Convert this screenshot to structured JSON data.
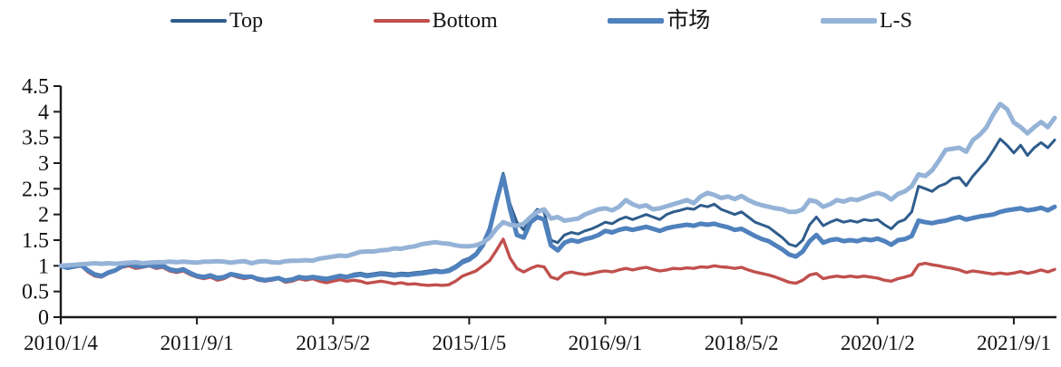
{
  "legend": {
    "items": [
      {
        "label": "Top"
      },
      {
        "label": "Bottom"
      },
      {
        "label": "市场"
      },
      {
        "label": "L-S"
      }
    ]
  },
  "chart_data": {
    "type": "line",
    "title": "",
    "xlabel": "",
    "ylabel": "",
    "grid": false,
    "legend_position": "top",
    "ylim": [
      0,
      4.5
    ],
    "y_ticks": [
      {
        "value": 0,
        "label": "0"
      },
      {
        "value": 0.5,
        "label": "0.5"
      },
      {
        "value": 1,
        "label": "1"
      },
      {
        "value": 1.5,
        "label": "1.5"
      },
      {
        "value": 2,
        "label": "2"
      },
      {
        "value": 2.5,
        "label": "2.5"
      },
      {
        "value": 3,
        "label": "3"
      },
      {
        "value": 3.5,
        "label": "3.5"
      },
      {
        "value": 4,
        "label": "4"
      },
      {
        "value": 4.5,
        "label": "4.5"
      }
    ],
    "x_month_count": 147,
    "x_start_label": "2010/1/4",
    "x_ticks": [
      {
        "month": 0,
        "label": "2010/1/4"
      },
      {
        "month": 20,
        "label": "2011/9/1"
      },
      {
        "month": 40,
        "label": "2013/5/2"
      },
      {
        "month": 60,
        "label": "2015/1/5"
      },
      {
        "month": 80,
        "label": "2016/9/1"
      },
      {
        "month": 100,
        "label": "2018/5/2"
      },
      {
        "month": 120,
        "label": "2020/1/2"
      },
      {
        "month": 140,
        "label": "2021/9/1"
      }
    ],
    "axis_color": "#1a1a1a",
    "series": [
      {
        "name": "Top",
        "color": "#2F5D8C",
        "stroke_width": 3,
        "values": [
          1.0,
          0.97,
          1.0,
          1.02,
          0.92,
          0.85,
          0.82,
          0.88,
          0.92,
          1.0,
          1.05,
          1.0,
          1.0,
          1.03,
          1.0,
          1.02,
          0.95,
          0.92,
          0.95,
          0.88,
          0.82,
          0.8,
          0.83,
          0.78,
          0.8,
          0.85,
          0.83,
          0.8,
          0.8,
          0.76,
          0.74,
          0.75,
          0.77,
          0.73,
          0.75,
          0.8,
          0.78,
          0.8,
          0.78,
          0.76,
          0.79,
          0.82,
          0.8,
          0.84,
          0.86,
          0.83,
          0.85,
          0.87,
          0.86,
          0.84,
          0.86,
          0.85,
          0.87,
          0.88,
          0.9,
          0.92,
          0.9,
          0.93,
          1.0,
          1.1,
          1.15,
          1.25,
          1.45,
          1.75,
          2.3,
          2.8,
          2.2,
          1.85,
          1.7,
          1.95,
          2.1,
          2.05,
          1.5,
          1.45,
          1.6,
          1.65,
          1.62,
          1.68,
          1.72,
          1.78,
          1.85,
          1.82,
          1.9,
          1.95,
          1.9,
          1.95,
          2.0,
          1.95,
          1.9,
          2.0,
          2.05,
          2.08,
          2.12,
          2.1,
          2.18,
          2.15,
          2.2,
          2.1,
          2.05,
          2.0,
          2.05,
          1.95,
          1.85,
          1.8,
          1.75,
          1.65,
          1.55,
          1.42,
          1.38,
          1.5,
          1.8,
          1.95,
          1.78,
          1.85,
          1.9,
          1.85,
          1.88,
          1.85,
          1.9,
          1.88,
          1.9,
          1.8,
          1.72,
          1.85,
          1.9,
          2.05,
          2.55,
          2.5,
          2.45,
          2.55,
          2.6,
          2.7,
          2.72,
          2.56,
          2.75,
          2.9,
          3.05,
          3.25,
          3.47,
          3.35,
          3.2,
          3.35,
          3.15,
          3.3,
          3.4,
          3.3,
          3.45
        ]
      },
      {
        "name": "Bottom",
        "color": "#C0504D",
        "stroke_width": 3.4,
        "values": [
          1.0,
          0.95,
          0.97,
          1.0,
          0.88,
          0.8,
          0.78,
          0.85,
          0.9,
          0.97,
          1.0,
          0.95,
          0.97,
          1.0,
          0.95,
          0.97,
          0.9,
          0.87,
          0.9,
          0.83,
          0.78,
          0.75,
          0.78,
          0.72,
          0.75,
          0.82,
          0.78,
          0.75,
          0.78,
          0.72,
          0.7,
          0.72,
          0.75,
          0.68,
          0.7,
          0.75,
          0.72,
          0.75,
          0.7,
          0.67,
          0.7,
          0.73,
          0.7,
          0.72,
          0.7,
          0.66,
          0.68,
          0.7,
          0.68,
          0.65,
          0.67,
          0.64,
          0.65,
          0.63,
          0.62,
          0.63,
          0.62,
          0.63,
          0.7,
          0.8,
          0.85,
          0.9,
          1.0,
          1.1,
          1.3,
          1.52,
          1.15,
          0.95,
          0.88,
          0.95,
          1.0,
          0.98,
          0.78,
          0.74,
          0.85,
          0.88,
          0.85,
          0.83,
          0.85,
          0.88,
          0.9,
          0.88,
          0.92,
          0.95,
          0.92,
          0.95,
          0.97,
          0.93,
          0.9,
          0.92,
          0.95,
          0.94,
          0.96,
          0.95,
          0.98,
          0.97,
          1.0,
          0.98,
          0.97,
          0.95,
          0.97,
          0.92,
          0.88,
          0.85,
          0.82,
          0.78,
          0.73,
          0.68,
          0.66,
          0.72,
          0.82,
          0.85,
          0.75,
          0.78,
          0.8,
          0.78,
          0.8,
          0.78,
          0.8,
          0.78,
          0.76,
          0.72,
          0.7,
          0.75,
          0.78,
          0.82,
          1.02,
          1.05,
          1.02,
          1.0,
          0.97,
          0.95,
          0.92,
          0.87,
          0.9,
          0.88,
          0.86,
          0.84,
          0.86,
          0.84,
          0.86,
          0.89,
          0.85,
          0.88,
          0.92,
          0.88,
          0.93
        ]
      },
      {
        "name": "市场",
        "color": "#4F81BD",
        "stroke_width": 5,
        "values": [
          1.0,
          0.96,
          0.99,
          1.01,
          0.91,
          0.83,
          0.8,
          0.87,
          0.91,
          0.99,
          1.04,
          0.99,
          0.99,
          1.02,
          0.98,
          1.0,
          0.93,
          0.9,
          0.93,
          0.86,
          0.8,
          0.78,
          0.81,
          0.76,
          0.78,
          0.84,
          0.81,
          0.78,
          0.79,
          0.74,
          0.72,
          0.74,
          0.76,
          0.71,
          0.73,
          0.78,
          0.76,
          0.78,
          0.76,
          0.74,
          0.77,
          0.8,
          0.78,
          0.81,
          0.83,
          0.8,
          0.82,
          0.84,
          0.83,
          0.81,
          0.83,
          0.82,
          0.84,
          0.85,
          0.87,
          0.89,
          0.88,
          0.9,
          0.97,
          1.07,
          1.12,
          1.22,
          1.4,
          1.7,
          2.25,
          2.75,
          2.1,
          1.6,
          1.55,
          1.85,
          1.95,
          1.9,
          1.4,
          1.3,
          1.45,
          1.5,
          1.47,
          1.52,
          1.55,
          1.6,
          1.68,
          1.65,
          1.7,
          1.73,
          1.7,
          1.73,
          1.76,
          1.72,
          1.68,
          1.73,
          1.76,
          1.78,
          1.8,
          1.78,
          1.82,
          1.8,
          1.82,
          1.78,
          1.75,
          1.7,
          1.72,
          1.65,
          1.58,
          1.52,
          1.48,
          1.4,
          1.32,
          1.22,
          1.18,
          1.28,
          1.48,
          1.6,
          1.45,
          1.5,
          1.52,
          1.48,
          1.5,
          1.48,
          1.52,
          1.5,
          1.53,
          1.48,
          1.41,
          1.5,
          1.52,
          1.58,
          1.88,
          1.85,
          1.83,
          1.86,
          1.88,
          1.92,
          1.95,
          1.9,
          1.93,
          1.96,
          1.98,
          2.0,
          2.05,
          2.08,
          2.1,
          2.12,
          2.08,
          2.1,
          2.13,
          2.08,
          2.15
        ]
      },
      {
        "name": "L-S",
        "color": "#95B3D7",
        "stroke_width": 5,
        "values": [
          1.0,
          1.01,
          1.02,
          1.03,
          1.04,
          1.05,
          1.04,
          1.05,
          1.04,
          1.05,
          1.06,
          1.07,
          1.05,
          1.06,
          1.07,
          1.07,
          1.08,
          1.07,
          1.08,
          1.07,
          1.06,
          1.08,
          1.08,
          1.09,
          1.08,
          1.06,
          1.08,
          1.09,
          1.05,
          1.08,
          1.09,
          1.07,
          1.06,
          1.09,
          1.1,
          1.1,
          1.11,
          1.1,
          1.14,
          1.16,
          1.18,
          1.2,
          1.19,
          1.23,
          1.27,
          1.28,
          1.28,
          1.3,
          1.31,
          1.34,
          1.33,
          1.36,
          1.38,
          1.42,
          1.44,
          1.46,
          1.44,
          1.43,
          1.4,
          1.38,
          1.38,
          1.4,
          1.45,
          1.55,
          1.72,
          1.85,
          1.8,
          1.78,
          1.82,
          1.95,
          2.05,
          2.1,
          1.92,
          1.95,
          1.88,
          1.9,
          1.92,
          2.0,
          2.05,
          2.1,
          2.12,
          2.08,
          2.15,
          2.28,
          2.2,
          2.15,
          2.18,
          2.1,
          2.12,
          2.16,
          2.2,
          2.24,
          2.28,
          2.22,
          2.35,
          2.42,
          2.38,
          2.32,
          2.35,
          2.3,
          2.36,
          2.28,
          2.22,
          2.18,
          2.15,
          2.12,
          2.1,
          2.05,
          2.05,
          2.1,
          2.28,
          2.25,
          2.15,
          2.2,
          2.28,
          2.25,
          2.3,
          2.28,
          2.33,
          2.38,
          2.42,
          2.38,
          2.29,
          2.4,
          2.45,
          2.55,
          2.78,
          2.75,
          2.86,
          3.05,
          3.26,
          3.28,
          3.3,
          3.22,
          3.45,
          3.55,
          3.7,
          3.95,
          4.15,
          4.05,
          3.79,
          3.7,
          3.58,
          3.7,
          3.8,
          3.7,
          3.88
        ]
      }
    ]
  }
}
